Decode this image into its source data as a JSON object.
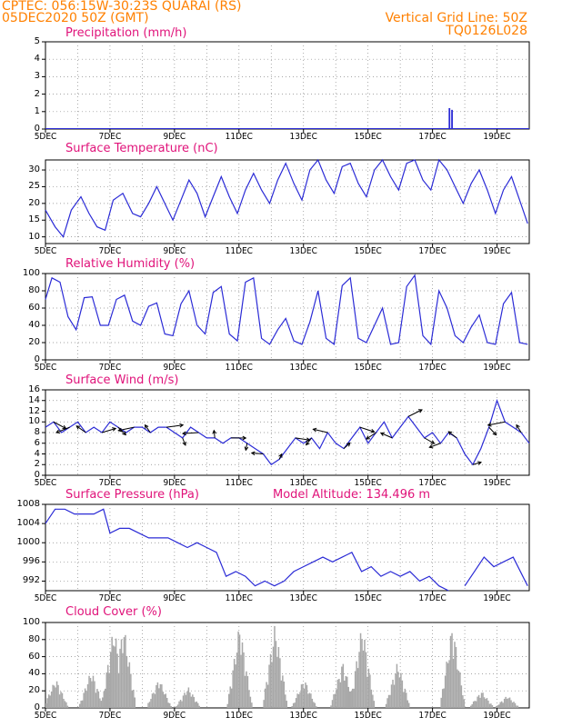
{
  "header": {
    "line1_left": "CPTEC:   056:15W-30:23S   QUARAI (RS)",
    "line2_left": "05DEC2020 50Z (GMT)",
    "line1_right": "Vertical Grid Line: 50Z",
    "line2_right": "TQ0126L028"
  },
  "colors": {
    "header": "#ff8000",
    "title": "#e0137a",
    "line": "#2b2bd6",
    "cloud": "#a8a8a8",
    "arrow": "#000000"
  },
  "x_labels": [
    "5DEC",
    "7DEC",
    "9DEC",
    "11DEC",
    "13DEC",
    "15DEC",
    "17DEC",
    "19DEC"
  ],
  "chart_data": [
    {
      "id": "precip",
      "type": "bar",
      "title": "Precipitation (mm/h)",
      "ylim": [
        0,
        5
      ],
      "yticks": [
        "0",
        "1",
        "2",
        "3",
        "4",
        "5"
      ],
      "x": [
        12.5,
        12.58
      ],
      "values": [
        1.2,
        1.1
      ]
    },
    {
      "id": "temp",
      "type": "line",
      "title": "Surface Temperature (nC)",
      "ylim": [
        8,
        33
      ],
      "yticks": [
        "10",
        "15",
        "20",
        "25",
        "30"
      ],
      "x": [
        0,
        0.3,
        0.55,
        0.8,
        1.1,
        1.35,
        1.6,
        1.85,
        2.1,
        2.4,
        2.7,
        2.95,
        3.2,
        3.45,
        3.7,
        3.95,
        4.2,
        4.45,
        4.7,
        4.95,
        5.2,
        5.45,
        5.7,
        5.95,
        6.2,
        6.45,
        6.7,
        6.95,
        7.2,
        7.45,
        7.7,
        7.95,
        8.2,
        8.45,
        8.7,
        8.95,
        9.2,
        9.45,
        9.7,
        9.95,
        10.2,
        10.45,
        10.7,
        10.95,
        11.2,
        11.45,
        11.7,
        11.95,
        12.2,
        12.45,
        12.7,
        12.95,
        13.2,
        13.45,
        13.7,
        13.95,
        14.2,
        14.45,
        14.7,
        14.95
      ],
      "values": [
        18,
        13,
        10,
        18,
        22,
        17,
        13,
        12,
        21,
        23,
        17,
        16,
        20,
        25,
        20,
        15,
        21,
        27,
        23,
        16,
        22,
        28,
        22,
        17,
        24,
        29,
        24,
        20,
        27,
        32,
        26,
        21,
        30,
        33,
        27,
        23,
        31,
        32,
        26,
        22,
        30,
        33,
        28,
        24,
        32,
        33,
        27,
        24,
        33,
        30,
        25,
        20,
        26,
        30,
        24,
        17,
        24,
        28,
        21,
        14
      ]
    },
    {
      "id": "rh",
      "type": "line",
      "title": "Relative Humidity (%)",
      "ylim": [
        0,
        100
      ],
      "yticks": [
        "0",
        "20",
        "40",
        "60",
        "80",
        "100"
      ],
      "x": [
        0,
        0.2,
        0.45,
        0.7,
        0.95,
        1.2,
        1.45,
        1.7,
        1.95,
        2.2,
        2.45,
        2.7,
        2.95,
        3.2,
        3.45,
        3.7,
        3.95,
        4.2,
        4.45,
        4.7,
        4.95,
        5.2,
        5.45,
        5.7,
        5.95,
        6.2,
        6.45,
        6.7,
        6.95,
        7.2,
        7.45,
        7.7,
        7.95,
        8.2,
        8.45,
        8.7,
        8.95,
        9.2,
        9.45,
        9.7,
        9.95,
        10.2,
        10.45,
        10.7,
        10.95,
        11.2,
        11.45,
        11.7,
        11.95,
        12.2,
        12.45,
        12.7,
        12.95,
        13.2,
        13.45,
        13.7,
        13.95,
        14.2,
        14.45,
        14.7,
        14.95
      ],
      "values": [
        70,
        95,
        90,
        50,
        35,
        72,
        73,
        40,
        40,
        70,
        75,
        45,
        40,
        62,
        66,
        30,
        28,
        65,
        80,
        40,
        30,
        78,
        85,
        30,
        22,
        90,
        95,
        25,
        18,
        35,
        48,
        22,
        18,
        44,
        80,
        25,
        18,
        86,
        95,
        25,
        20,
        40,
        60,
        18,
        20,
        85,
        98,
        28,
        18,
        80,
        60,
        28,
        20,
        38,
        52,
        20,
        18,
        65,
        78,
        20,
        18
      ]
    },
    {
      "id": "wind",
      "type": "line",
      "title": "Surface Wind (m/s)",
      "ylim": [
        0,
        16
      ],
      "yticks": [
        "0",
        "2",
        "4",
        "6",
        "8",
        "10",
        "12",
        "14",
        "16"
      ],
      "x": [
        0,
        0.25,
        0.5,
        0.75,
        1,
        1.25,
        1.5,
        1.75,
        2,
        2.25,
        2.5,
        2.75,
        3,
        3.25,
        3.5,
        3.75,
        4,
        4.25,
        4.5,
        4.75,
        5,
        5.25,
        5.5,
        5.75,
        6,
        6.25,
        6.5,
        6.75,
        7,
        7.25,
        7.5,
        7.75,
        8,
        8.25,
        8.5,
        8.75,
        9,
        9.25,
        9.5,
        9.75,
        10,
        10.25,
        10.5,
        10.75,
        11,
        11.25,
        11.5,
        11.75,
        12,
        12.25,
        12.5,
        12.75,
        13,
        13.25,
        13.5,
        13.75,
        14,
        14.25,
        14.5,
        14.75,
        15
      ],
      "values": [
        9,
        10,
        8,
        9,
        10,
        8,
        9,
        8,
        10,
        9,
        8,
        9,
        9,
        8,
        9,
        9,
        8,
        7,
        9,
        8,
        7,
        7,
        6,
        7,
        7,
        6,
        5,
        4,
        2,
        3,
        5,
        7,
        6,
        7,
        5,
        8,
        6,
        5,
        7,
        9,
        6,
        8,
        10,
        7,
        9,
        11,
        9,
        7,
        8,
        6,
        8,
        7,
        4,
        2,
        5,
        9,
        14,
        10,
        9,
        8,
        6
      ],
      "arrows_label": "wind direction vectors"
    },
    {
      "id": "pres",
      "type": "line",
      "title": "Surface Pressure (hPa)",
      "annotation": "Model Altitude: 134.496 m",
      "ylim": [
        990,
        1008
      ],
      "yticks": [
        "992",
        "996",
        "1000",
        "1004",
        "1008"
      ],
      "x": [
        0,
        0.3,
        0.6,
        0.9,
        1.2,
        1.5,
        1.8,
        2,
        2.3,
        2.6,
        2.9,
        3.2,
        3.5,
        3.8,
        4.1,
        4.4,
        4.7,
        5,
        5.3,
        5.6,
        5.9,
        6.2,
        6.5,
        6.8,
        7.1,
        7.4,
        7.7,
        8,
        8.3,
        8.6,
        8.9,
        9.2,
        9.5,
        9.8,
        10.1,
        10.4,
        10.7,
        11,
        11.3,
        11.6,
        11.9,
        12.2,
        12.5
      ],
      "values": [
        1004,
        1007,
        1007,
        1006,
        1006,
        1006,
        1007,
        1002,
        1003,
        1003,
        1002,
        1001,
        1001,
        1001,
        1000,
        999,
        1000,
        999,
        998,
        993,
        994,
        993,
        991,
        992,
        991,
        992,
        994,
        995,
        996,
        997,
        996,
        997,
        998,
        994,
        995,
        993,
        994,
        993,
        994,
        992,
        993,
        991,
        990
      ],
      "x2": [
        13,
        13.3,
        13.6,
        13.9,
        14.2,
        14.5,
        14.8,
        14.95
      ],
      "values2": [
        991,
        994,
        997,
        995,
        996,
        997,
        993,
        991
      ]
    },
    {
      "id": "cloud",
      "type": "bar",
      "title": "Cloud Cover (%)",
      "ylim": [
        0,
        100
      ],
      "yticks": [
        "0",
        "20",
        "40",
        "60",
        "80",
        "100"
      ],
      "peaks": [
        [
          0.3,
          35
        ],
        [
          1.4,
          45
        ],
        [
          2.1,
          98
        ],
        [
          2.4,
          100
        ],
        [
          3.5,
          35
        ],
        [
          4.4,
          25
        ],
        [
          6.0,
          100
        ],
        [
          7.1,
          100
        ],
        [
          8.0,
          35
        ],
        [
          9.2,
          55
        ],
        [
          9.8,
          100
        ],
        [
          10.9,
          55
        ],
        [
          12.6,
          100
        ],
        [
          13.5,
          20
        ],
        [
          14.3,
          15
        ]
      ]
    }
  ]
}
